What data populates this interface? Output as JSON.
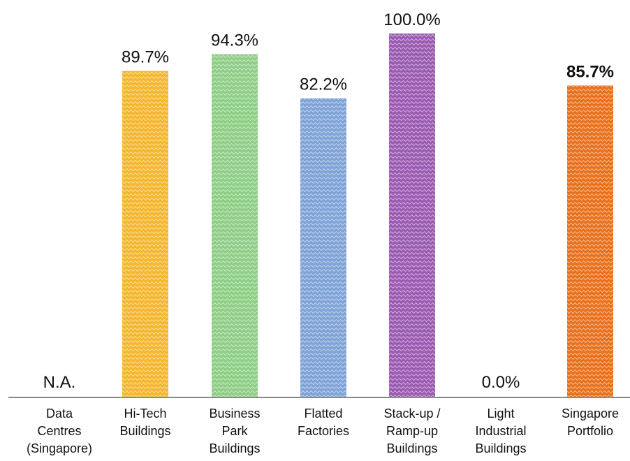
{
  "chart_data": {
    "type": "bar",
    "categories": [
      [
        "Data",
        "Centres",
        "(Singapore)"
      ],
      [
        "Hi-Tech",
        "Buildings"
      ],
      [
        "Business",
        "Park",
        "Buildings"
      ],
      [
        "Flatted",
        "Factories"
      ],
      [
        "Stack-up /",
        "Ramp-up",
        "Buildings"
      ],
      [
        "Light",
        "Industrial",
        "Buildings"
      ],
      [
        "Singapore",
        "Portfolio"
      ]
    ],
    "values": [
      null,
      89.7,
      94.3,
      82.2,
      100.0,
      0.0,
      85.7
    ],
    "data_labels": [
      "N.A.",
      "89.7%",
      "94.3%",
      "82.2%",
      "100.0%",
      "0.0%",
      "85.7%"
    ],
    "bold_labels": [
      false,
      false,
      false,
      false,
      false,
      false,
      true
    ],
    "colors": [
      "#ffffff",
      "#f5b730",
      "#8fce86",
      "#7fa3d6",
      "#9b5bb2",
      "#ffffff",
      "#e8711e"
    ],
    "pattern": [
      "none",
      "wave",
      "wave",
      "wave",
      "wave",
      "none",
      "wave"
    ],
    "ylim": [
      0,
      100
    ],
    "axis_color": "#888888",
    "grid": false,
    "legend": "none"
  }
}
